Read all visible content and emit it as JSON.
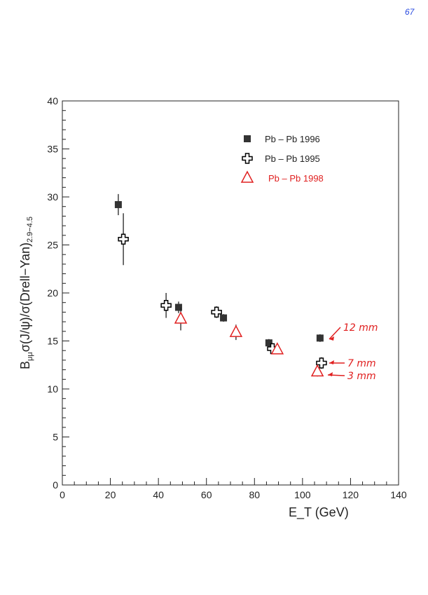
{
  "page_number": "67",
  "chart_data": {
    "type": "scatter",
    "title": "",
    "xlabel": "E_T (GeV)",
    "ylabel": "B_μμ σ(J/ψ)/σ(Drell−Yan)_2.9−4.5",
    "xlim": [
      0,
      140
    ],
    "ylim": [
      0,
      40
    ],
    "x_ticks": [
      0,
      20,
      40,
      60,
      80,
      100,
      120,
      140
    ],
    "y_ticks": [
      0,
      5,
      10,
      15,
      20,
      25,
      30,
      35,
      40
    ],
    "grid": false,
    "legend_position": "top-right",
    "series": [
      {
        "name": "Pb – Pb 1996",
        "marker": "filled-square",
        "color": "#333333",
        "x": [
          23.3,
          48.4,
          67.1,
          86.0,
          107.3
        ],
        "y": [
          29.2,
          18.5,
          17.4,
          14.8,
          15.3
        ],
        "yerr": [
          1.1,
          0.6,
          0.4,
          0.4,
          0.4
        ]
      },
      {
        "name": "Pb – Pb 1995",
        "marker": "open-cross",
        "color": "#000000",
        "x": [
          25.4,
          43.2,
          64.2,
          87.5,
          107.9
        ],
        "y": [
          25.6,
          18.7,
          18.0,
          14.2,
          12.7
        ],
        "yerr": [
          2.7,
          1.3,
          0.6,
          0.5,
          0.6
        ]
      },
      {
        "name": "Pb – Pb 1998",
        "marker": "open-triangle",
        "color": "#e02020",
        "x": [
          49.3,
          72.3,
          89.5,
          106.2
        ],
        "y": [
          17.3,
          15.9,
          14.1,
          11.8
        ],
        "yerr": [
          1.2,
          0.8,
          0.4,
          0.5
        ]
      }
    ],
    "annotations": [
      {
        "text": "12 mm",
        "x": 107.3,
        "y": 15.3
      },
      {
        "text": "7 mm",
        "x": 107.9,
        "y": 12.7
      },
      {
        "text": "3 mm",
        "x": 106.2,
        "y": 11.8
      }
    ]
  }
}
